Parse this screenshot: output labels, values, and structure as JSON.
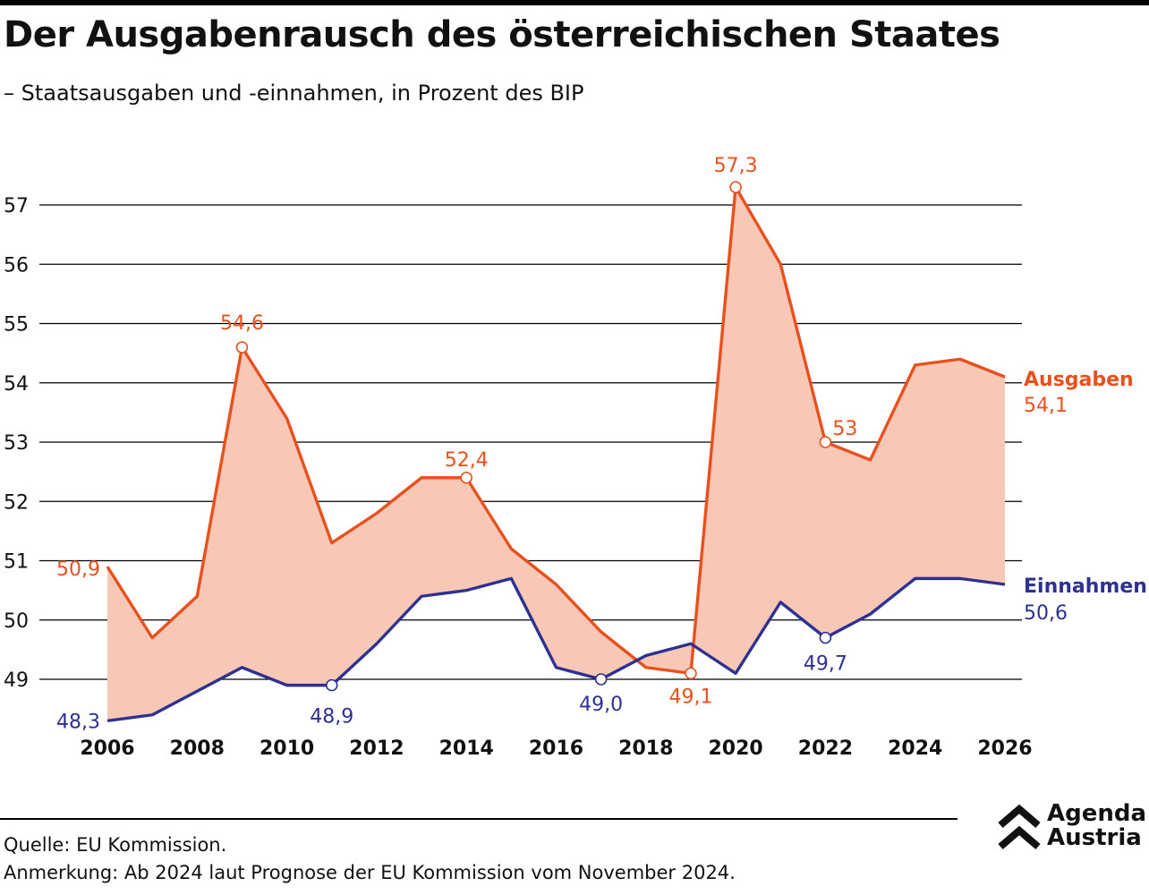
{
  "title": "Der Ausgabenrausch des österreichischen Staates",
  "subtitle": "– Staatsausgaben und -einnahmen, in Prozent des BIP",
  "footer": {
    "source": "Quelle: EU Kommission.",
    "note": "Anmerkung: Ab 2024 laut Prognose der EU Kommission vom November 2024."
  },
  "logo": {
    "line1": "Agenda",
    "line2": "Austria",
    "icon": "double-chevron-up-icon"
  },
  "colors": {
    "ausgaben": "#e8501e",
    "einnahmen": "#2e3192",
    "fill": "#f8c8b7",
    "grid": "#000000"
  },
  "chart_data": {
    "type": "line",
    "x": [
      2006,
      2007,
      2008,
      2009,
      2010,
      2011,
      2012,
      2013,
      2014,
      2015,
      2016,
      2017,
      2018,
      2019,
      2020,
      2021,
      2022,
      2023,
      2024,
      2025,
      2026
    ],
    "x_tick_labels": [
      "2006",
      "2008",
      "2010",
      "2012",
      "2014",
      "2016",
      "2018",
      "2020",
      "2022",
      "2024",
      "2026"
    ],
    "y_ticks": [
      49,
      50,
      51,
      52,
      53,
      54,
      55,
      56,
      57
    ],
    "y_tick_labels": [
      "49",
      "50",
      "51",
      "52",
      "53",
      "54",
      "55",
      "56",
      "57"
    ],
    "grid": "horizontal",
    "fill_between": true,
    "series": [
      {
        "name": "Ausgaben",
        "end_label": "54,1",
        "values": [
          50.9,
          49.7,
          50.4,
          54.6,
          53.4,
          51.3,
          51.8,
          52.4,
          52.4,
          51.2,
          50.6,
          49.8,
          49.2,
          49.1,
          57.3,
          56.0,
          53.0,
          52.7,
          54.3,
          54.4,
          54.1
        ],
        "annotations": [
          {
            "x": 2006,
            "y": 50.9,
            "text": "50,9",
            "marker": false
          },
          {
            "x": 2009,
            "y": 54.6,
            "text": "54,6",
            "marker": true
          },
          {
            "x": 2014,
            "y": 52.4,
            "text": "52,4",
            "marker": true
          },
          {
            "x": 2019,
            "y": 49.1,
            "text": "49,1",
            "marker": true
          },
          {
            "x": 2020,
            "y": 57.3,
            "text": "57,3",
            "marker": true
          },
          {
            "x": 2022,
            "y": 53.0,
            "text": "53",
            "marker": true
          }
        ]
      },
      {
        "name": "Einnahmen",
        "end_label": "50,6",
        "values": [
          48.3,
          48.4,
          48.8,
          49.2,
          48.9,
          48.9,
          49.6,
          50.4,
          50.5,
          50.7,
          49.2,
          49.0,
          49.4,
          49.6,
          49.1,
          50.3,
          49.7,
          50.1,
          50.7,
          50.7,
          50.6
        ],
        "annotations": [
          {
            "x": 2006,
            "y": 48.3,
            "text": "48,3",
            "marker": false
          },
          {
            "x": 2011,
            "y": 48.9,
            "text": "48,9",
            "marker": true
          },
          {
            "x": 2017,
            "y": 49.0,
            "text": "49,0",
            "marker": true
          },
          {
            "x": 2022,
            "y": 49.7,
            "text": "49,7",
            "marker": true
          }
        ]
      }
    ]
  }
}
